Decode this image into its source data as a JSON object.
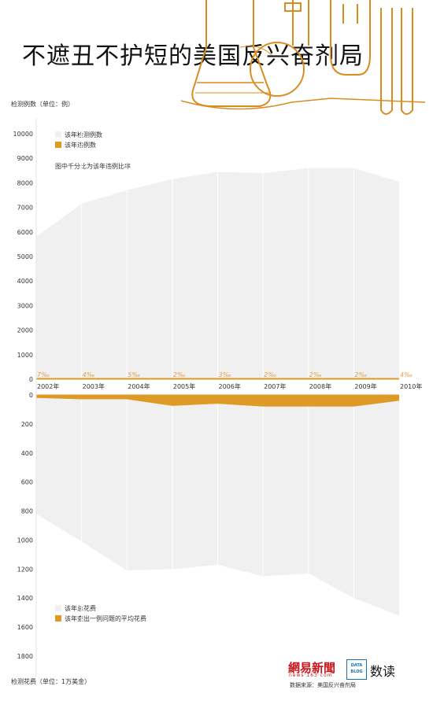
{
  "title": "不遮丑不护短的美国反兴奋剂局",
  "source": "数据来源：美国反兴奋剂局",
  "logo": {
    "netease": "網易新聞",
    "netease_sub": "news·163·com",
    "datablog": "DATA BLOG",
    "shudu": "数读"
  },
  "chart_data": {
    "type": "area",
    "x": [
      "2002年",
      "2003年",
      "2004年",
      "2005年",
      "2006年",
      "2007年",
      "2008年",
      "2009年",
      "2010年"
    ],
    "top": {
      "ylabel": "检测例数（单位：例）",
      "ylim": [
        0,
        10000
      ],
      "yticks": [
        0,
        1000,
        2000,
        3000,
        4000,
        5000,
        6000,
        7000,
        8000,
        9000,
        10000
      ],
      "legend": [
        "该年检测例数",
        "该年违例数"
      ],
      "note": "图中千分比为该年违例比率",
      "series": [
        {
          "name": "该年检测例数",
          "color": "#f0f0f0",
          "values": [
            5800,
            7150,
            7700,
            8150,
            8450,
            8400,
            8600,
            8600,
            8050
          ]
        },
        {
          "name": "该年违例数",
          "color": "#dd9a27",
          "values": [
            40,
            30,
            38,
            16,
            26,
            17,
            17,
            17,
            32
          ]
        }
      ],
      "rate_labels": [
        "7‰",
        "4‰",
        "5‰",
        "2‰",
        "3‰",
        "2‰",
        "2‰",
        "2‰",
        "4‰"
      ]
    },
    "bottom": {
      "ylabel": "检测花费（单位：1万美金）",
      "ylim": [
        0,
        1800
      ],
      "yticks": [
        0,
        200,
        400,
        600,
        800,
        1000,
        1200,
        1400,
        1600,
        1800
      ],
      "legend": [
        "该年总花费",
        "该年查出一例问题的平均花费"
      ],
      "series": [
        {
          "name": "该年总花费",
          "color": "#f0f0f0",
          "values": [
            820,
            1010,
            1210,
            1200,
            1170,
            1250,
            1230,
            1400,
            1520
          ]
        },
        {
          "name": "该年查出一例问题的平均花费",
          "color": "#dd9a27",
          "values": [
            20,
            30,
            30,
            75,
            60,
            80,
            80,
            80,
            40
          ]
        }
      ]
    }
  }
}
